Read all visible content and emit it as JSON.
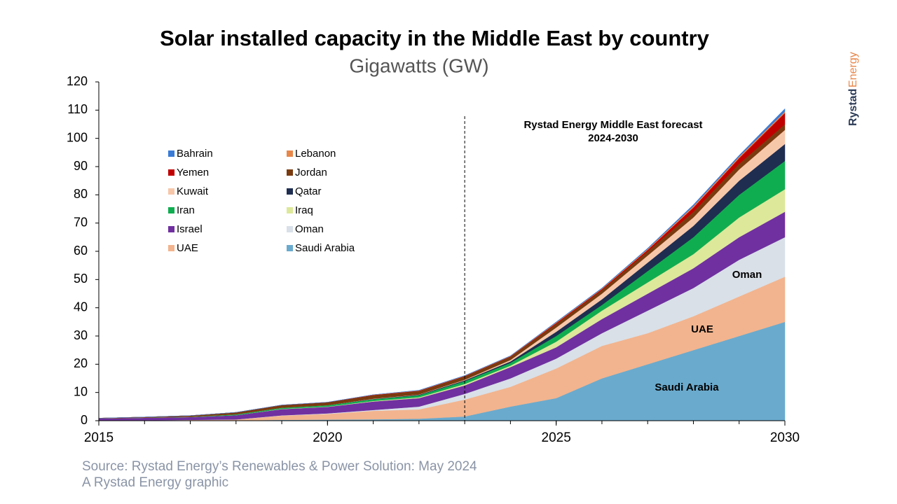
{
  "chart_data": {
    "type": "stacked-area",
    "title": "Solar installed capacity in the Middle East by country",
    "subtitle": "Gigawatts (GW)",
    "x": [
      2015,
      2016,
      2017,
      2018,
      2019,
      2020,
      2021,
      2022,
      2023,
      2024,
      2025,
      2026,
      2027,
      2028,
      2029,
      2030
    ],
    "xlim": [
      2015,
      2030
    ],
    "xticks": [
      2015,
      2020,
      2025,
      2030
    ],
    "ylim": [
      0,
      120
    ],
    "yticks": [
      0,
      10,
      20,
      30,
      40,
      50,
      60,
      70,
      80,
      90,
      100,
      110,
      120
    ],
    "legend": "upper-left",
    "series": [
      {
        "name": "Saudi Arabia",
        "color": "#6aaacd",
        "values": [
          0.05,
          0.05,
          0.1,
          0.1,
          0.3,
          0.4,
          0.5,
          0.7,
          1.5,
          5,
          8,
          15,
          20,
          25,
          30,
          35
        ]
      },
      {
        "name": "UAE",
        "color": "#f2b48e",
        "values": [
          0.05,
          0.1,
          0.2,
          0.3,
          1.5,
          2,
          3,
          3.3,
          6,
          7,
          10.5,
          11.5,
          11,
          12,
          14,
          16
        ]
      },
      {
        "name": "Oman",
        "color": "#d9e0e8",
        "values": [
          0,
          0,
          0,
          0.05,
          0.1,
          0.2,
          0.3,
          1,
          2,
          3,
          3.5,
          4.5,
          8,
          10,
          13,
          14
        ]
      },
      {
        "name": "Israel",
        "color": "#7030a0",
        "values": [
          0.7,
          0.9,
          1,
          1.5,
          2.2,
          2.3,
          3,
          3,
          3,
          4,
          4,
          5,
          6,
          7,
          8,
          9
        ]
      },
      {
        "name": "Iraq",
        "color": "#dde89a",
        "values": [
          0,
          0,
          0,
          0,
          0.1,
          0.1,
          0.2,
          0.3,
          0.5,
          0.5,
          2,
          3,
          4,
          5,
          7,
          8
        ]
      },
      {
        "name": "Iran",
        "color": "#10ad50",
        "values": [
          0,
          0.05,
          0.1,
          0.3,
          0.4,
          0.5,
          0.6,
          0.7,
          1,
          1,
          2,
          2,
          4,
          6,
          8,
          10
        ]
      },
      {
        "name": "Qatar",
        "color": "#1f2d50",
        "values": [
          0,
          0,
          0,
          0,
          0,
          0,
          0.1,
          0.2,
          0.3,
          0.5,
          1.5,
          2,
          3,
          4,
          5,
          6
        ]
      },
      {
        "name": "Kuwait",
        "color": "#f7c7aa",
        "values": [
          0,
          0,
          0,
          0,
          0,
          0,
          0.1,
          0.1,
          0.2,
          0.5,
          1.5,
          2,
          2.5,
          3,
          4,
          5
        ]
      },
      {
        "name": "Jordan",
        "color": "#7a3b10",
        "values": [
          0.1,
          0.2,
          0.4,
          0.7,
          0.9,
          1,
          1.2,
          1.2,
          1.2,
          1.2,
          1.3,
          1.3,
          1.5,
          2,
          2,
          2
        ]
      },
      {
        "name": "Yemen",
        "color": "#c00000",
        "values": [
          0,
          0,
          0,
          0,
          0.05,
          0.05,
          0.1,
          0.1,
          0.1,
          0.1,
          0.3,
          0.3,
          0.5,
          1.5,
          2,
          4
        ]
      },
      {
        "name": "Lebanon",
        "color": "#e8874a",
        "values": [
          0,
          0,
          0,
          0,
          0,
          0,
          0.1,
          0.1,
          0.1,
          0.1,
          0.2,
          0.2,
          0.3,
          0.5,
          0.5,
          0.5
        ]
      },
      {
        "name": "Bahrain",
        "color": "#3a7bd5",
        "values": [
          0,
          0,
          0,
          0,
          0,
          0,
          0,
          0.1,
          0.1,
          0.1,
          0.2,
          0.2,
          0.3,
          0.5,
          0.5,
          1
        ]
      }
    ],
    "forecast_line_x": 2023,
    "annotations": [
      "Rystad Energy Middle East forecast",
      "2024-2030",
      "Oman",
      "UAE",
      "Saudi Arabia"
    ],
    "source": "Source: Rystad Energy’s Renewables & Power Solution: May 2024",
    "credit": "A Rystad Energy graphic",
    "brand": [
      "Rystad",
      "Energy"
    ]
  }
}
